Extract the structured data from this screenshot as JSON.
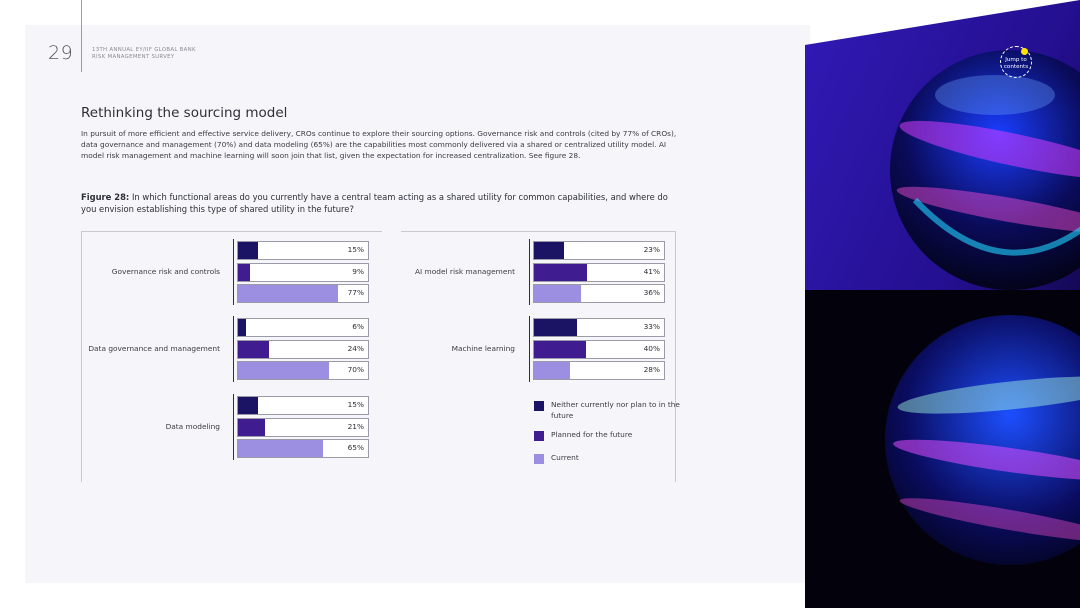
{
  "header": {
    "page_number": "29",
    "survey_line1": "13TH ANNUAL EY/IIF GLOBAL BANK",
    "survey_line2": "RISK MANAGEMENT SURVEY",
    "jump_line1": "Jump to",
    "jump_line2": "contents"
  },
  "section": {
    "title": "Rethinking the sourcing model",
    "intro": "In pursuit of more efficient and effective service delivery, CROs continue to explore their sourcing options. Governance risk and controls (cited by 77% of CROs), data governance and management (70%) and data modeling (65%) are the capabilities most commonly delivered via a shared or centralized utility model. AI model risk management and machine learning will soon join that list, given the expectation for increased centralization. See figure 28."
  },
  "figure": {
    "label": "Figure 28:",
    "question": "In which functional areas do you currently have a central team acting as a shared utility for common capabilities, and where do you envision establishing this type of shared utility in the future?"
  },
  "colors": {
    "neither": "#1b1464",
    "planned": "#3f1d91",
    "current": "#9c8ee0"
  },
  "chart_data": {
    "type": "bar",
    "orientation": "horizontal",
    "series": [
      {
        "name": "Neither currently nor plan to in the future",
        "key": "neither"
      },
      {
        "name": "Planned for the future",
        "key": "planned"
      },
      {
        "name": "Current",
        "key": "current"
      }
    ],
    "categories": [
      {
        "name": "Governance risk and controls",
        "values": [
          15,
          9,
          77
        ],
        "labels": [
          "15%",
          "9%",
          "77%"
        ]
      },
      {
        "name": "Data governance and management",
        "values": [
          6,
          24,
          70
        ],
        "labels": [
          "6%",
          "24%",
          "70%"
        ]
      },
      {
        "name": "Data modeling",
        "values": [
          15,
          21,
          65
        ],
        "labels": [
          "15%",
          "21%",
          "65%"
        ]
      },
      {
        "name": "AI model risk management",
        "values": [
          23,
          41,
          36
        ],
        "labels": [
          "23%",
          "41%",
          "36%"
        ]
      },
      {
        "name": "Machine learning",
        "values": [
          33,
          40,
          28
        ],
        "labels": [
          "33%",
          "40%",
          "28%"
        ]
      }
    ],
    "xlim": [
      0,
      100
    ],
    "legend_position": "bottom-right"
  },
  "legend": {
    "items": [
      {
        "label": "Neither currently nor plan to in the future"
      },
      {
        "label": "Planned for the future"
      },
      {
        "label": "Current"
      }
    ]
  }
}
